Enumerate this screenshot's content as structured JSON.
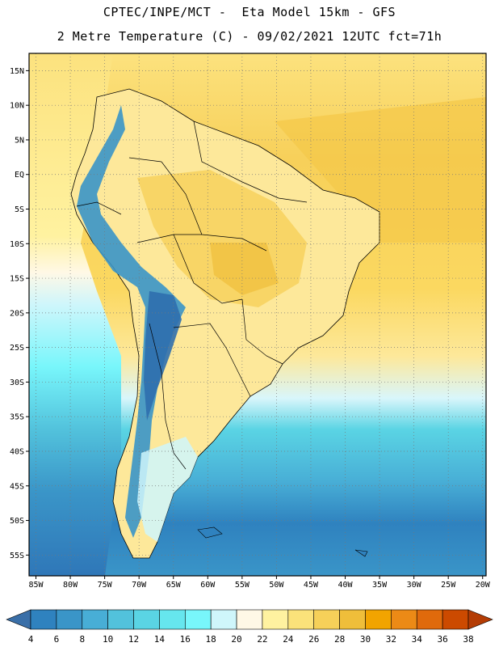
{
  "header": {
    "line1": "CPTEC/INPE/MCT -  Eta Model 15km - GFS",
    "line2": "2 Metre Temperature (C) - 09/02/2021 12UTC fct=71h"
  },
  "map": {
    "lat_labels": [
      "15N",
      "10N",
      "5N",
      "EQ",
      "5S",
      "10S",
      "15S",
      "20S",
      "25S",
      "30S",
      "35S",
      "40S",
      "45S",
      "50S",
      "55S"
    ],
    "lon_labels": [
      "85W",
      "80W",
      "75W",
      "70W",
      "65W",
      "60W",
      "55W",
      "50W",
      "45W",
      "40W",
      "35W",
      "30W",
      "25W",
      "20W"
    ],
    "lat_range": [
      17.5,
      -58
    ],
    "lon_range": [
      -86,
      -19.5
    ]
  },
  "colorbar": {
    "levels": [
      "4",
      "6",
      "8",
      "10",
      "12",
      "14",
      "16",
      "18",
      "20",
      "22",
      "24",
      "26",
      "28",
      "30",
      "32",
      "34",
      "36",
      "38"
    ],
    "colors": [
      "#3a6fa8",
      "#2f82bf",
      "#3a95c8",
      "#48aed6",
      "#52c2dc",
      "#5ad4e4",
      "#66e6ee",
      "#78f6fb",
      "#cff6fb",
      "#fff8e6",
      "#fff2a0",
      "#fbe27a",
      "#f6d059",
      "#efbe3a",
      "#f2a400",
      "#ec8a16",
      "#e06a0c",
      "#cc4a00",
      "#b43c04"
    ]
  },
  "colors": {
    "ocean_warm": "#fbd65a",
    "ocean_mid": "#f6cf58",
    "land_warm": "#fde89a",
    "andes_cold": "#2f82bf",
    "south_ocean": "#4fc1dc",
    "deep_south": "#2f77b8",
    "border": "#000000"
  }
}
